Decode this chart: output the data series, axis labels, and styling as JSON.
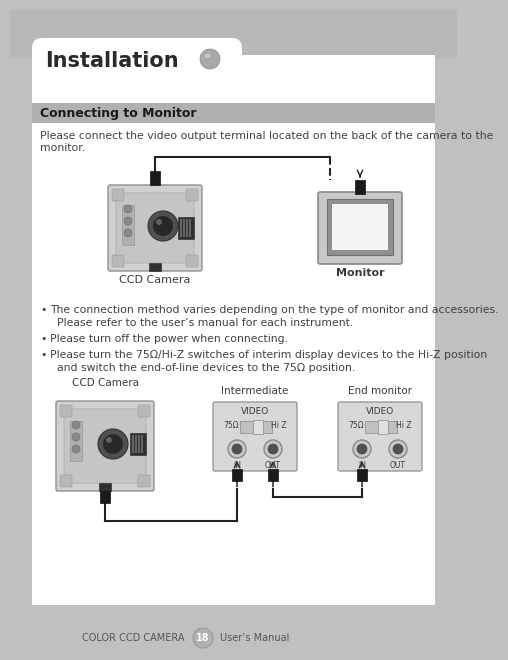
{
  "bg_color": "#c0c0c0",
  "page_bg": "#ffffff",
  "title_section": "Installation",
  "section_header": "Connecting to Monitor",
  "body_text_1": "Please connect the video output terminal located on the back of the camera to the",
  "body_text_2": "monitor.",
  "bullet_1a": "The connection method varies depending on the type of monitor and accessories.",
  "bullet_1b": "  Please refer to the user’s manual for each instrument.",
  "bullet_2": "Please turn off the power when connecting.",
  "bullet_3a": "Please turn the 75Ω/Hi-Z switches of interim display devices to the Hi-Z position",
  "bullet_3b": "  and switch the end-of-line devices to the 75Ω position.",
  "label_ccd_camera_top": "CCD Camera",
  "label_monitor_top": "Monitor",
  "label_ccd_camera_bottom": "CCD Camera",
  "label_intermediate": "Intermediate",
  "label_end_monitor": "End monitor",
  "label_video1": "VIDEO",
  "label_video2": "VIDEO",
  "label_75ohm1": "75Ω",
  "label_hiz1": "Hi Z",
  "label_75ohm2": "75Ω",
  "label_hiz2": "Hi Z",
  "label_in1": "IN",
  "label_out1": "OUT",
  "label_in2": "IN",
  "label_out2": "OUT",
  "footer_left": "COLOR CCD CAMERA",
  "footer_page": "18",
  "footer_right": "User’s Manual",
  "dark_gray": "#3a3a3a",
  "text_color": "#404040"
}
